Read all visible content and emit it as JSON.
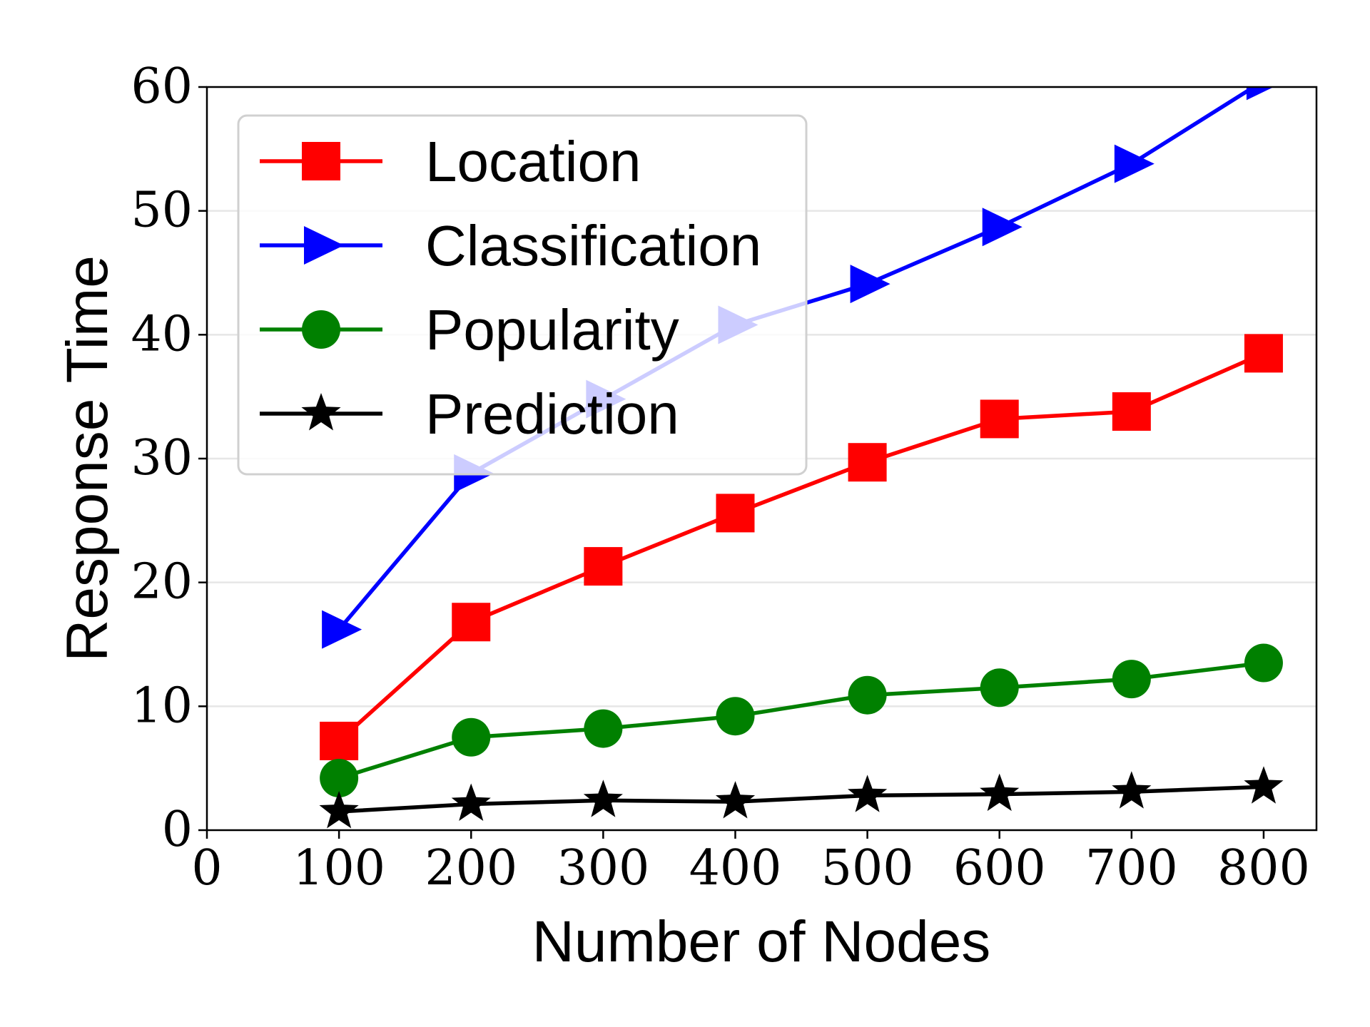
{
  "chart_data": {
    "type": "line",
    "xlabel": "Number of Nodes",
    "ylabel": "Response Time",
    "xlim": [
      0,
      840
    ],
    "ylim": [
      0,
      60
    ],
    "x_ticks": [
      "0",
      "100",
      "200",
      "300",
      "400",
      "500",
      "600",
      "700",
      "800"
    ],
    "y_ticks": [
      "0",
      "10",
      "20",
      "30",
      "40",
      "50",
      "60"
    ],
    "grid": "horizontal",
    "legend_position": "upper-left",
    "x": [
      100,
      200,
      300,
      400,
      500,
      600,
      700,
      800
    ],
    "series": [
      {
        "name": "Location",
        "color": "#ff0000",
        "marker": "square",
        "values": [
          7.2,
          16.8,
          21.3,
          25.6,
          29.7,
          33.2,
          33.8,
          38.5
        ]
      },
      {
        "name": "Classification",
        "color": "#0000ff",
        "marker": "triangle-right",
        "values": [
          16.2,
          28.8,
          34.8,
          40.8,
          44.1,
          48.7,
          53.8,
          60.5
        ]
      },
      {
        "name": "Popularity",
        "color": "#008000",
        "marker": "circle",
        "values": [
          4.2,
          7.5,
          8.2,
          9.2,
          10.9,
          11.5,
          12.2,
          13.5
        ]
      },
      {
        "name": "Prediction",
        "color": "#000000",
        "marker": "star",
        "values": [
          1.5,
          2.1,
          2.4,
          2.3,
          2.8,
          2.9,
          3.1,
          3.5
        ]
      }
    ]
  }
}
